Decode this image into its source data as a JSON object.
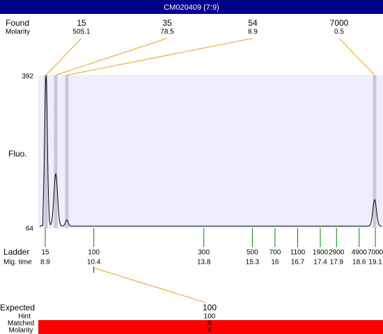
{
  "title": "CM020409 (7:9)",
  "found": {
    "label": "Found",
    "sublabel": "Molarity",
    "peaks": [
      {
        "size": 15,
        "molarity": 505.1
      },
      {
        "size": 35,
        "molarity": 78.5
      },
      {
        "size": 54,
        "molarity": 8.9
      },
      {
        "size": 7000,
        "molarity": 0.5
      }
    ]
  },
  "y_axis": {
    "label": "Fluo.",
    "ticks": [
      392,
      64
    ]
  },
  "ladder": {
    "label": "Ladder",
    "sublabel": "Mig. time",
    "peaks": [
      {
        "size": 15,
        "time": 8.9
      },
      {
        "size": 100,
        "time": 10.4
      },
      {
        "size": 300,
        "time": 13.8
      },
      {
        "size": 500,
        "time": 15.3
      },
      {
        "size": 700,
        "time": 16
      },
      {
        "size": 1100,
        "time": 16.7
      },
      {
        "size": 1900,
        "time": 17.4
      },
      {
        "size": 2900,
        "time": 17.9
      },
      {
        "size": 4900,
        "time": 18.6
      },
      {
        "size": 7000,
        "time": 19.1
      }
    ]
  },
  "expected": {
    "label": "Expected",
    "value": 100,
    "hint_label": "Hint",
    "hint": 100,
    "matched_label": "Matched",
    "matched": "X",
    "molarity_label": "Molarity",
    "molarity": "X"
  }
}
